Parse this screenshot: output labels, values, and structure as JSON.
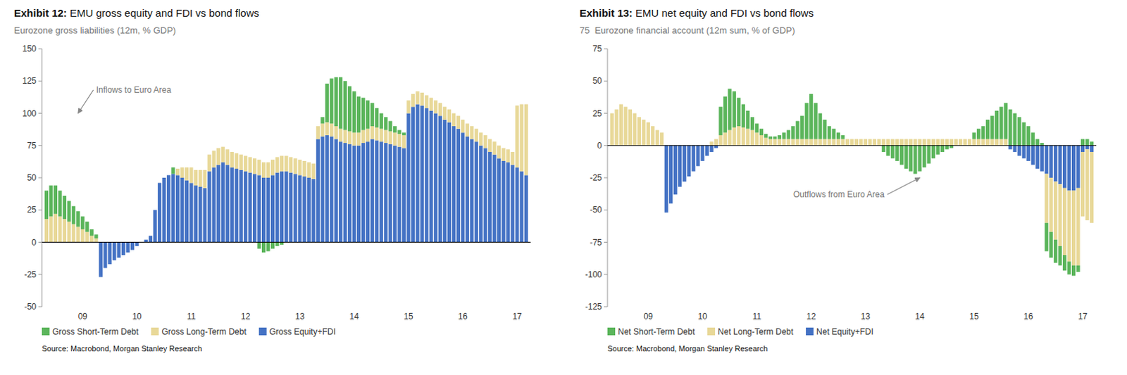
{
  "chart_data": [
    {
      "type": "bar",
      "stacked": true,
      "grid": false,
      "legend": "bottom",
      "title": "Exhibit 12: EMU gross equity and FDI vs bond flows",
      "subtitle": "Eurozone gross liabilities (12m, % GDP)",
      "annotation": "Inflows to Euro Area",
      "source": "Source: Macrobond, Morgan Stanley Research",
      "ylim": [
        -50,
        150
      ],
      "yticks": [
        -50,
        -25,
        0,
        25,
        50,
        75,
        100,
        125,
        150
      ],
      "categories": [
        null,
        null,
        null,
        null,
        null,
        null,
        null,
        null,
        "09",
        null,
        null,
        null,
        null,
        null,
        null,
        null,
        null,
        null,
        null,
        null,
        "10",
        null,
        null,
        null,
        null,
        null,
        null,
        null,
        null,
        null,
        null,
        null,
        "11",
        null,
        null,
        null,
        null,
        null,
        null,
        null,
        null,
        null,
        null,
        null,
        "12",
        null,
        null,
        null,
        null,
        null,
        null,
        null,
        null,
        null,
        null,
        null,
        "13",
        null,
        null,
        null,
        null,
        null,
        null,
        null,
        null,
        null,
        null,
        null,
        "14",
        null,
        null,
        null,
        null,
        null,
        null,
        null,
        null,
        null,
        null,
        null,
        "15",
        null,
        null,
        null,
        null,
        null,
        null,
        null,
        null,
        null,
        null,
        null,
        "16",
        null,
        null,
        null,
        null,
        null,
        null,
        null,
        null,
        null,
        null,
        null,
        "17",
        null,
        null
      ],
      "series": [
        {
          "name": "Gross Short-Term Debt",
          "color": "#5BB55B",
          "values": [
            22,
            24,
            22,
            20,
            18,
            16,
            14,
            12,
            10,
            8,
            5,
            3,
            0,
            0,
            0,
            0,
            0,
            0,
            0,
            0,
            0,
            0,
            0,
            0,
            0,
            0,
            0,
            0,
            5,
            0,
            0,
            0,
            0,
            0,
            0,
            0,
            0,
            0,
            0,
            0,
            0,
            0,
            0,
            0,
            0,
            0,
            0,
            -5,
            -8,
            -7,
            -5,
            -3,
            -2,
            0,
            0,
            0,
            0,
            0,
            0,
            0,
            0,
            5,
            30,
            35,
            38,
            40,
            38,
            35,
            32,
            28,
            25,
            22,
            18,
            15,
            12,
            10,
            8,
            5,
            3,
            2,
            0,
            0,
            0,
            0,
            0,
            0,
            0,
            0,
            0,
            0,
            0,
            0,
            0,
            0,
            0,
            0,
            0,
            0,
            0,
            0,
            0,
            0,
            0,
            0,
            0,
            0,
            0
          ]
        },
        {
          "name": "Gross Long-Term Debt",
          "color": "#E8D898",
          "values": [
            18,
            20,
            22,
            20,
            18,
            16,
            14,
            12,
            10,
            8,
            5,
            3,
            0,
            0,
            0,
            0,
            0,
            0,
            0,
            0,
            0,
            0,
            0,
            0,
            0,
            0,
            0,
            0,
            0,
            5,
            8,
            10,
            12,
            12,
            13,
            14,
            13,
            13,
            13,
            12,
            12,
            12,
            12,
            12,
            12,
            12,
            12,
            12,
            12,
            12,
            12,
            12,
            12,
            12,
            12,
            12,
            12,
            12,
            12,
            12,
            10,
            10,
            10,
            10,
            10,
            10,
            10,
            10,
            10,
            10,
            10,
            10,
            10,
            10,
            10,
            10,
            10,
            10,
            10,
            10,
            10,
            10,
            10,
            10,
            10,
            10,
            10,
            10,
            10,
            10,
            10,
            10,
            10,
            10,
            10,
            10,
            10,
            10,
            10,
            10,
            10,
            10,
            10,
            10,
            48,
            52,
            55
          ]
        },
        {
          "name": "Gross Equity+FDI",
          "color": "#4472C4",
          "values": [
            0,
            0,
            0,
            0,
            0,
            0,
            0,
            0,
            0,
            0,
            0,
            0,
            -27,
            -20,
            -17,
            -14,
            -12,
            -10,
            -8,
            -6,
            -3,
            0,
            2,
            5,
            25,
            46,
            50,
            52,
            53,
            52,
            50,
            48,
            46,
            44,
            43,
            42,
            55,
            58,
            60,
            62,
            60,
            58,
            57,
            56,
            55,
            54,
            53,
            52,
            50,
            50,
            52,
            54,
            55,
            55,
            54,
            53,
            52,
            51,
            50,
            49,
            80,
            82,
            83,
            82,
            80,
            78,
            77,
            76,
            75,
            75,
            77,
            78,
            80,
            79,
            78,
            77,
            76,
            75,
            74,
            73,
            100,
            105,
            107,
            106,
            104,
            102,
            100,
            98,
            95,
            93,
            90,
            88,
            85,
            82,
            80,
            78,
            75,
            73,
            70,
            68,
            65,
            63,
            62,
            60,
            58,
            55,
            52
          ]
        }
      ]
    },
    {
      "type": "bar",
      "stacked": true,
      "grid": false,
      "legend": "bottom",
      "title": "Exhibit 13: EMU net equity and FDI vs bond flows",
      "subtitle": "75  Eurozone financial account (12m sum, % of GDP)",
      "annotation": "Outflows from Euro Area",
      "source": "Source: Macrobond, Morgan Stanley Research",
      "ylim": [
        -125,
        75
      ],
      "yticks": [
        -125,
        -100,
        -75,
        -50,
        -25,
        0,
        25,
        50,
        75
      ],
      "categories": [
        null,
        null,
        null,
        null,
        null,
        null,
        null,
        null,
        "09",
        null,
        null,
        null,
        null,
        null,
        null,
        null,
        null,
        null,
        null,
        null,
        "10",
        null,
        null,
        null,
        null,
        null,
        null,
        null,
        null,
        null,
        null,
        null,
        "11",
        null,
        null,
        null,
        null,
        null,
        null,
        null,
        null,
        null,
        null,
        null,
        "12",
        null,
        null,
        null,
        null,
        null,
        null,
        null,
        null,
        null,
        null,
        null,
        "13",
        null,
        null,
        null,
        null,
        null,
        null,
        null,
        null,
        null,
        null,
        null,
        "14",
        null,
        null,
        null,
        null,
        null,
        null,
        null,
        null,
        null,
        null,
        null,
        "15",
        null,
        null,
        null,
        null,
        null,
        null,
        null,
        null,
        null,
        null,
        null,
        "16",
        null,
        null,
        null,
        null,
        null,
        null,
        null,
        null,
        null,
        null,
        null,
        "17",
        null,
        null
      ],
      "series": [
        {
          "name": "Net Short-Term Debt",
          "color": "#5BB55B",
          "values": [
            0,
            0,
            0,
            0,
            0,
            0,
            0,
            0,
            0,
            0,
            0,
            0,
            0,
            0,
            0,
            0,
            0,
            0,
            0,
            0,
            0,
            0,
            0,
            0,
            22,
            28,
            32,
            28,
            22,
            18,
            14,
            10,
            7,
            5,
            3,
            2,
            2,
            3,
            5,
            7,
            10,
            14,
            18,
            28,
            35,
            28,
            20,
            15,
            10,
            8,
            5,
            3,
            0,
            0,
            0,
            0,
            0,
            0,
            0,
            0,
            -5,
            -8,
            -10,
            -12,
            -15,
            -18,
            -20,
            -22,
            -20,
            -17,
            -14,
            -10,
            -7,
            -5,
            -3,
            -2,
            0,
            0,
            0,
            0,
            5,
            8,
            10,
            15,
            18,
            22,
            25,
            28,
            28,
            25,
            22,
            18,
            15,
            10,
            5,
            2,
            -22,
            -20,
            -18,
            -15,
            -12,
            -10,
            -8,
            -5,
            5,
            5,
            3
          ]
        },
        {
          "name": "Net Long-Term Debt",
          "color": "#E8D898",
          "values": [
            25,
            28,
            32,
            30,
            28,
            25,
            22,
            20,
            18,
            15,
            12,
            10,
            0,
            0,
            0,
            0,
            0,
            0,
            0,
            0,
            0,
            0,
            3,
            5,
            8,
            10,
            12,
            14,
            15,
            14,
            13,
            12,
            10,
            8,
            6,
            5,
            5,
            5,
            5,
            5,
            5,
            5,
            5,
            5,
            5,
            5,
            5,
            5,
            5,
            5,
            5,
            5,
            5,
            5,
            5,
            5,
            5,
            5,
            5,
            5,
            5,
            5,
            5,
            5,
            5,
            5,
            5,
            5,
            5,
            5,
            5,
            5,
            5,
            5,
            5,
            5,
            5,
            5,
            5,
            5,
            5,
            5,
            5,
            5,
            5,
            5,
            5,
            5,
            0,
            0,
            0,
            0,
            0,
            0,
            0,
            0,
            -38,
            -42,
            -45,
            -48,
            -52,
            -55,
            -58,
            -60,
            -50,
            -55,
            -55
          ]
        },
        {
          "name": "Net Equity+FDI",
          "color": "#4472C4",
          "values": [
            0,
            0,
            0,
            0,
            0,
            0,
            0,
            0,
            0,
            0,
            0,
            0,
            -52,
            -45,
            -38,
            -32,
            -28,
            -24,
            -20,
            -16,
            -12,
            -8,
            -5,
            -2,
            0,
            0,
            0,
            0,
            0,
            0,
            0,
            0,
            0,
            0,
            0,
            0,
            0,
            0,
            0,
            0,
            0,
            0,
            0,
            0,
            0,
            0,
            0,
            0,
            0,
            0,
            0,
            0,
            0,
            0,
            0,
            0,
            0,
            0,
            0,
            0,
            0,
            0,
            0,
            0,
            0,
            0,
            0,
            0,
            0,
            0,
            0,
            0,
            0,
            0,
            0,
            0,
            0,
            0,
            0,
            0,
            0,
            0,
            0,
            0,
            0,
            0,
            0,
            0,
            -3,
            -5,
            -8,
            -10,
            -12,
            -15,
            -18,
            -20,
            -22,
            -25,
            -28,
            -30,
            -33,
            -35,
            -35,
            -33,
            -5,
            -3,
            -5
          ]
        }
      ]
    }
  ]
}
